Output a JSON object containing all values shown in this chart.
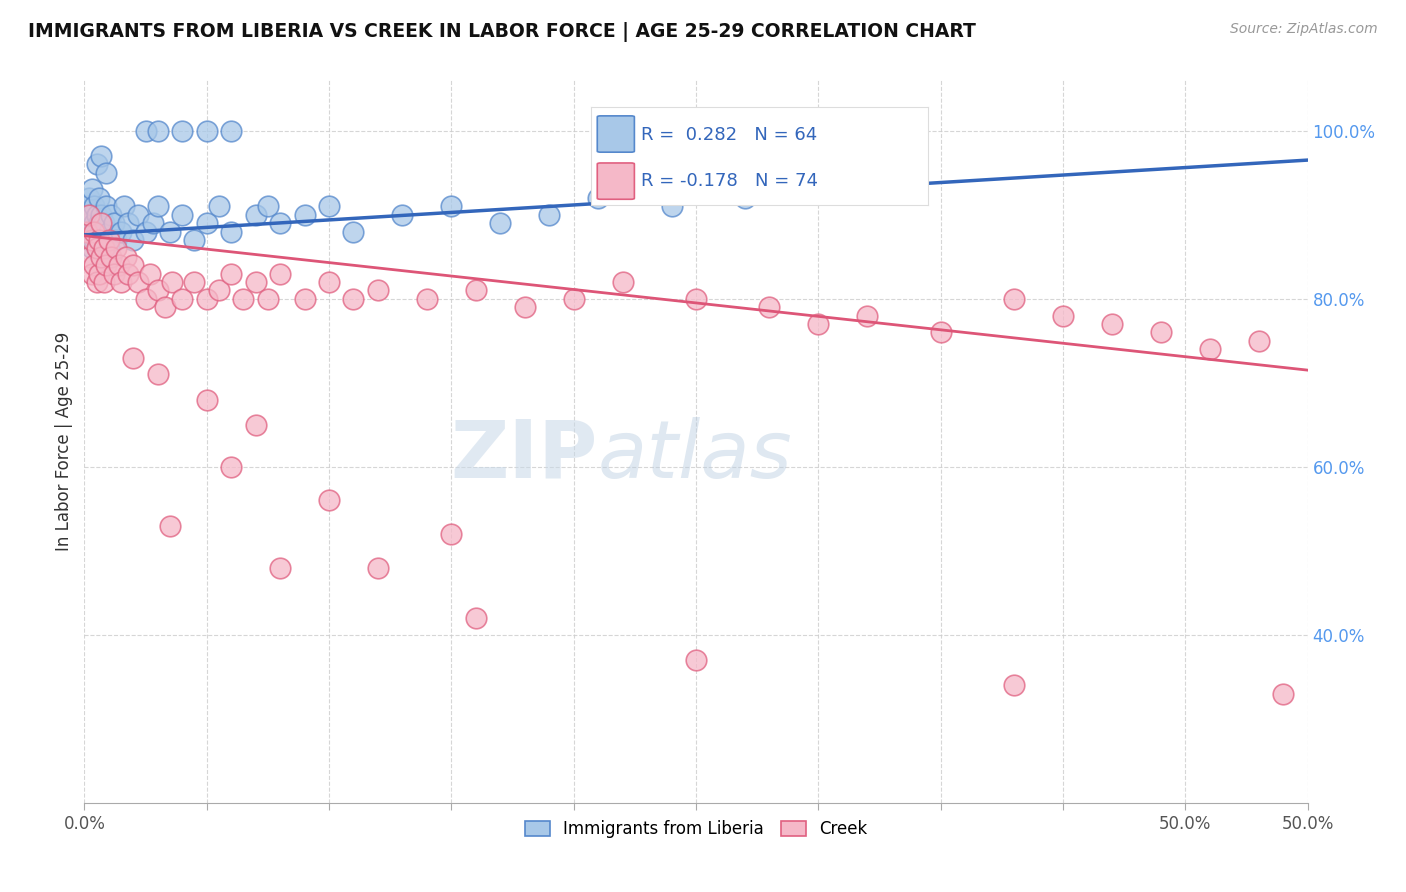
{
  "title": "IMMIGRANTS FROM LIBERIA VS CREEK IN LABOR FORCE | AGE 25-29 CORRELATION CHART",
  "source_text": "Source: ZipAtlas.com",
  "ylabel": "In Labor Force | Age 25-29",
  "xlim": [
    0.0,
    0.5
  ],
  "ylim": [
    0.2,
    1.06
  ],
  "xtick_positions": [
    0.0,
    0.05,
    0.1,
    0.15,
    0.2,
    0.25,
    0.3,
    0.35,
    0.4,
    0.45,
    0.5
  ],
  "xtick_labels_shown": {
    "0.0": "0.0%",
    "0.5": "50.0%"
  },
  "yticks_right": [
    0.4,
    0.6,
    0.8,
    1.0
  ],
  "yticklabels_right": [
    "40.0%",
    "60.0%",
    "80.0%",
    "100.0%"
  ],
  "grid_color": "#cccccc",
  "blue_color": "#a8c8e8",
  "pink_color": "#f5b8c8",
  "blue_edge_color": "#5588cc",
  "pink_edge_color": "#e06080",
  "blue_line_color": "#3366bb",
  "pink_line_color": "#dd5577",
  "legend_label_blue": "Immigrants from Liberia",
  "legend_label_pink": "Creek",
  "blue_line_x0": 0.0,
  "blue_line_y0": 0.876,
  "blue_line_x1": 0.5,
  "blue_line_y1": 0.965,
  "pink_line_x0": 0.0,
  "pink_line_y0": 0.875,
  "pink_line_x1": 0.5,
  "pink_line_y1": 0.715,
  "blue_scatter_x": [
    0.001,
    0.001,
    0.002,
    0.002,
    0.002,
    0.003,
    0.003,
    0.003,
    0.003,
    0.004,
    0.004,
    0.004,
    0.005,
    0.005,
    0.005,
    0.006,
    0.006,
    0.007,
    0.007,
    0.008,
    0.008,
    0.009,
    0.01,
    0.01,
    0.011,
    0.012,
    0.013,
    0.015,
    0.016,
    0.018,
    0.02,
    0.022,
    0.025,
    0.028,
    0.03,
    0.035,
    0.04,
    0.045,
    0.05,
    0.055,
    0.06,
    0.07,
    0.075,
    0.08,
    0.09,
    0.1,
    0.11,
    0.13,
    0.15,
    0.17,
    0.19,
    0.21,
    0.24,
    0.27,
    0.3,
    0.33,
    0.025,
    0.03,
    0.04,
    0.05,
    0.06,
    0.005,
    0.007,
    0.009
  ],
  "blue_scatter_y": [
    0.88,
    0.91,
    0.89,
    0.92,
    0.87,
    0.88,
    0.9,
    0.86,
    0.93,
    0.89,
    0.91,
    0.87,
    0.88,
    0.9,
    0.86,
    0.89,
    0.92,
    0.88,
    0.9,
    0.87,
    0.89,
    0.91,
    0.88,
    0.86,
    0.9,
    0.89,
    0.87,
    0.88,
    0.91,
    0.89,
    0.87,
    0.9,
    0.88,
    0.89,
    0.91,
    0.88,
    0.9,
    0.87,
    0.89,
    0.91,
    0.88,
    0.9,
    0.91,
    0.89,
    0.9,
    0.91,
    0.88,
    0.9,
    0.91,
    0.89,
    0.9,
    0.92,
    0.91,
    0.92,
    0.93,
    0.94,
    1.0,
    1.0,
    1.0,
    1.0,
    1.0,
    0.96,
    0.97,
    0.95
  ],
  "pink_scatter_x": [
    0.001,
    0.002,
    0.002,
    0.003,
    0.003,
    0.004,
    0.004,
    0.005,
    0.005,
    0.006,
    0.006,
    0.007,
    0.007,
    0.008,
    0.008,
    0.009,
    0.01,
    0.011,
    0.012,
    0.013,
    0.014,
    0.015,
    0.017,
    0.018,
    0.02,
    0.022,
    0.025,
    0.027,
    0.03,
    0.033,
    0.036,
    0.04,
    0.045,
    0.05,
    0.055,
    0.06,
    0.065,
    0.07,
    0.075,
    0.08,
    0.09,
    0.1,
    0.11,
    0.12,
    0.14,
    0.16,
    0.18,
    0.2,
    0.22,
    0.25,
    0.28,
    0.3,
    0.32,
    0.35,
    0.38,
    0.4,
    0.42,
    0.44,
    0.46,
    0.48,
    0.03,
    0.05,
    0.07,
    0.1,
    0.15,
    0.02,
    0.035,
    0.06,
    0.08,
    0.12,
    0.16,
    0.25,
    0.38,
    0.49
  ],
  "pink_scatter_y": [
    0.88,
    0.85,
    0.9,
    0.87,
    0.83,
    0.88,
    0.84,
    0.86,
    0.82,
    0.87,
    0.83,
    0.85,
    0.89,
    0.86,
    0.82,
    0.84,
    0.87,
    0.85,
    0.83,
    0.86,
    0.84,
    0.82,
    0.85,
    0.83,
    0.84,
    0.82,
    0.8,
    0.83,
    0.81,
    0.79,
    0.82,
    0.8,
    0.82,
    0.8,
    0.81,
    0.83,
    0.8,
    0.82,
    0.8,
    0.83,
    0.8,
    0.82,
    0.8,
    0.81,
    0.8,
    0.81,
    0.79,
    0.8,
    0.82,
    0.8,
    0.79,
    0.77,
    0.78,
    0.76,
    0.8,
    0.78,
    0.77,
    0.76,
    0.74,
    0.75,
    0.71,
    0.68,
    0.65,
    0.56,
    0.52,
    0.73,
    0.53,
    0.6,
    0.48,
    0.48,
    0.42,
    0.37,
    0.34,
    0.33
  ]
}
